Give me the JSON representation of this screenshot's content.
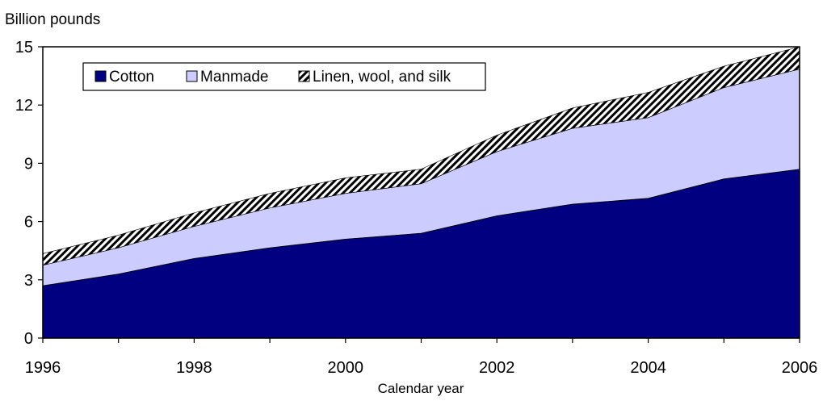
{
  "chart_data": {
    "type": "area",
    "stacked": true,
    "ylabel": "Billion pounds",
    "xlabel": "Calendar year",
    "x": [
      1996,
      1997,
      1998,
      1999,
      2000,
      2001,
      2002,
      2003,
      2004,
      2005,
      2006
    ],
    "xticks": [
      "1996",
      "1998",
      "2000",
      "2002",
      "2004",
      "2006"
    ],
    "yticks": [
      "0",
      "3",
      "6",
      "9",
      "12",
      "15"
    ],
    "ylim": [
      0,
      15
    ],
    "grid": false,
    "legend_position": "top-left inside",
    "series": [
      {
        "name": "Cotton",
        "color": "#000080",
        "pattern": "solid",
        "values": [
          2.7,
          3.3,
          4.1,
          4.65,
          5.1,
          5.4,
          6.3,
          6.9,
          7.2,
          8.2,
          8.7
        ]
      },
      {
        "name": "Manmade",
        "color": "#ccccff",
        "pattern": "solid",
        "values": [
          1.05,
          1.35,
          1.65,
          2.05,
          2.35,
          2.55,
          3.3,
          3.9,
          4.15,
          4.7,
          5.15
        ]
      },
      {
        "name": "Linen, wool, and silk",
        "color": "#000000",
        "pattern": "diagonal-hatch",
        "values": [
          0.6,
          0.65,
          0.7,
          0.75,
          0.8,
          0.75,
          0.85,
          1.05,
          1.3,
          1.1,
          1.15
        ]
      }
    ]
  }
}
